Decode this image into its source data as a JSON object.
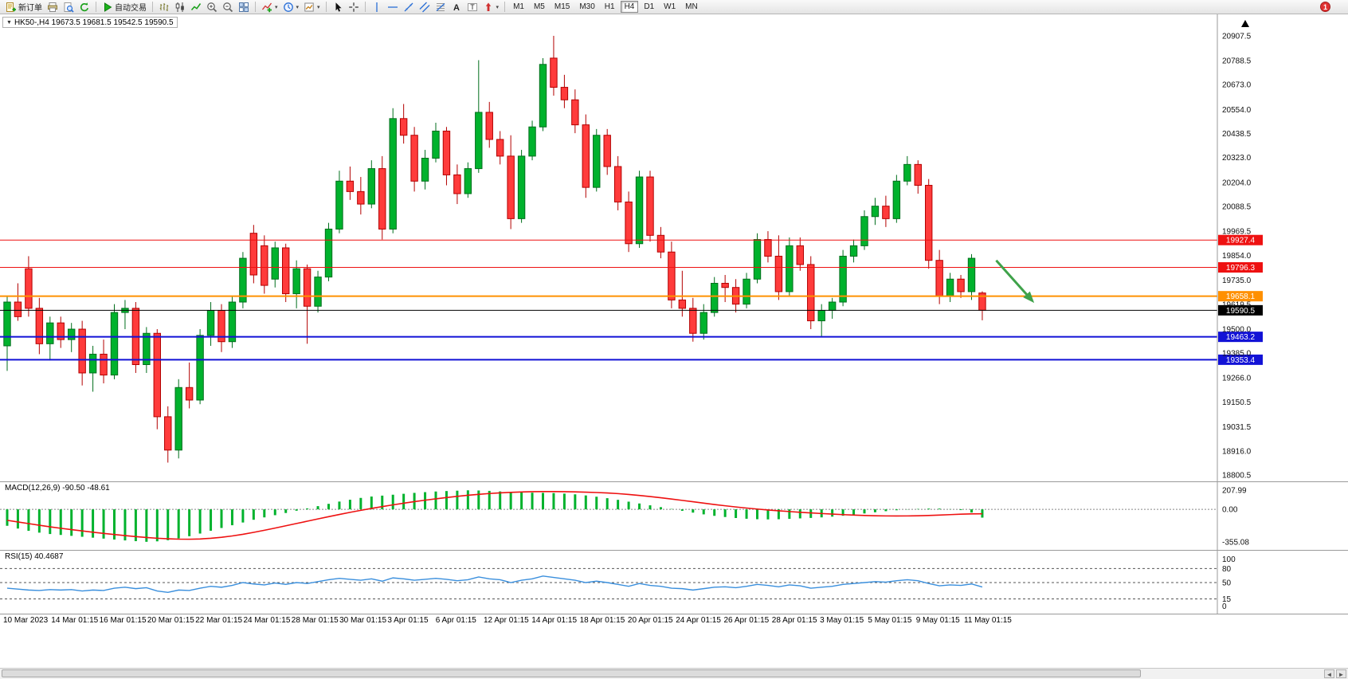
{
  "toolbar": {
    "groups": [
      {
        "items": [
          {
            "name": "new-order-button",
            "icon": "new-order-icon",
            "label": "新订单"
          },
          {
            "name": "print-button",
            "icon": "print-icon"
          },
          {
            "name": "print-preview-button",
            "icon": "preview-icon"
          },
          {
            "name": "refresh-button",
            "icon": "refresh-icon"
          }
        ]
      },
      {
        "items": [
          {
            "name": "autotrade-button",
            "icon": "autotrade-icon",
            "label": "自动交易"
          }
        ]
      },
      {
        "items": [
          {
            "name": "bar-chart-button",
            "icon": "bar-chart-icon"
          },
          {
            "name": "candle-chart-button",
            "icon": "candle-chart-icon"
          },
          {
            "name": "line-chart-button",
            "icon": "line-chart-icon"
          },
          {
            "name": "zoom-in-button",
            "icon": "zoom-in-icon"
          },
          {
            "name": "zoom-out-button",
            "icon": "zoom-out-icon"
          },
          {
            "name": "tile-windows-button",
            "icon": "tile-windows-icon"
          }
        ]
      },
      {
        "items": [
          {
            "name": "indicators-button",
            "icon": "indicators-icon",
            "caret": true
          },
          {
            "name": "periods-button",
            "icon": "periods-icon",
            "caret": true
          },
          {
            "name": "templates-button",
            "icon": "templates-icon",
            "caret": true
          }
        ]
      },
      {
        "items": [
          {
            "name": "cursor-button",
            "icon": "cursor-icon"
          },
          {
            "name": "crosshair-button",
            "icon": "crosshair-icon"
          }
        ]
      },
      {
        "items": [
          {
            "name": "vertical-line-button",
            "icon": "vline-icon"
          },
          {
            "name": "horizontal-line-button",
            "icon": "hline-icon"
          },
          {
            "name": "trendline-button",
            "icon": "trendline-icon"
          },
          {
            "name": "channel-button",
            "icon": "channel-icon"
          },
          {
            "name": "fibonacci-button",
            "icon": "fibo-icon"
          },
          {
            "name": "text-button",
            "icon": "text-icon"
          },
          {
            "name": "text-label-button",
            "icon": "label-icon"
          },
          {
            "name": "arrows-button",
            "icon": "arrows-tool-icon",
            "caret": true
          }
        ]
      }
    ],
    "timeframes": [
      "M1",
      "M5",
      "M15",
      "M30",
      "H1",
      "H4",
      "D1",
      "W1",
      "MN"
    ],
    "active_timeframe": "H4",
    "notification_badge": "1"
  },
  "colors": {
    "bull": "#00b22d",
    "bull_border": "#006e1c",
    "bear": "#ff3b3b",
    "bear_border": "#b30000",
    "macd_hist": "#00b22d",
    "macd_signal": "#ee1111",
    "rsi_line": "#3a8fdd",
    "arrow": "#3fa24a",
    "level_red": "#ee1111",
    "level_orange": "#ff9000",
    "level_black": "#000000",
    "level_blue": "#1212d6"
  },
  "chart_data": {
    "type": "candlestick",
    "symbol": "HK50-",
    "timeframe": "H4",
    "symbol_display": "HK50-,H4 19673.5 19681.5 19542.5 19590.5",
    "current_ohlc": {
      "open": 19673.5,
      "high": 19681.5,
      "low": 19542.5,
      "close": 19590.5
    },
    "price_axis": {
      "view_max": 21010,
      "view_min": 18770,
      "ticks": [
        "20907.5",
        "20788.5",
        "20673.0",
        "20554.0",
        "20438.5",
        "20323.0",
        "20204.0",
        "20088.5",
        "19969.5",
        "19854.0",
        "19735.0",
        "19619.5",
        "19500.0",
        "19385.0",
        "19266.0",
        "19150.5",
        "19031.5",
        "18916.0",
        "18800.5"
      ]
    },
    "x_labels": [
      "10 Mar 2023",
      "14 Mar 01:15",
      "16 Mar 01:15",
      "20 Mar 01:15",
      "22 Mar 01:15",
      "24 Mar 01:15",
      "28 Mar 01:15",
      "30 Mar 01:15",
      "3 Apr 01:15",
      "6 Apr 01:15",
      "12 Apr 01:15",
      "14 Apr 01:15",
      "18 Apr 01:15",
      "20 Apr 01:15",
      "24 Apr 01:15",
      "26 Apr 01:15",
      "28 Apr 01:15",
      "3 May 01:15",
      "5 May 01:15",
      "9 May 01:15",
      "11 May 01:15"
    ],
    "levels": [
      {
        "price": 19927.4,
        "label": "19927.4",
        "color": "#ee1111",
        "width": 1
      },
      {
        "price": 19796.3,
        "label": "19796.3",
        "color": "#ee1111",
        "width": 1
      },
      {
        "price": 19658.1,
        "label": "19658.1",
        "color": "#ff9000",
        "width": 2
      },
      {
        "price": 19590.5,
        "label": "19590.5",
        "color": "#000000",
        "width": 1
      },
      {
        "price": 19463.2,
        "label": "19463.2",
        "color": "#1212d6",
        "width": 2
      },
      {
        "price": 19353.4,
        "label": "19353.4",
        "color": "#1212d6",
        "width": 2
      }
    ],
    "arrow_annotation": {
      "from": {
        "index": 92.3,
        "price": 19830
      },
      "to": {
        "index": 95.6,
        "price": 19640
      }
    },
    "candles": [
      [
        19420,
        19660,
        19300,
        19630
      ],
      [
        19630,
        19720,
        19540,
        19560
      ],
      [
        19790,
        19850,
        19560,
        19600
      ],
      [
        19600,
        19650,
        19380,
        19430
      ],
      [
        19430,
        19560,
        19350,
        19530
      ],
      [
        19530,
        19560,
        19410,
        19450
      ],
      [
        19450,
        19530,
        19390,
        19500
      ],
      [
        19500,
        19540,
        19230,
        19290
      ],
      [
        19290,
        19420,
        19200,
        19380
      ],
      [
        19380,
        19450,
        19240,
        19280
      ],
      [
        19280,
        19620,
        19260,
        19580
      ],
      [
        19580,
        19640,
        19500,
        19600
      ],
      [
        19600,
        19630,
        19290,
        19330
      ],
      [
        19330,
        19510,
        19290,
        19480
      ],
      [
        19480,
        19500,
        19020,
        19080
      ],
      [
        19080,
        19130,
        18860,
        18920
      ],
      [
        18920,
        19260,
        18880,
        19220
      ],
      [
        19220,
        19340,
        19120,
        19160
      ],
      [
        19160,
        19500,
        19140,
        19470
      ],
      [
        19470,
        19630,
        19420,
        19590
      ],
      [
        19590,
        19620,
        19390,
        19440
      ],
      [
        19440,
        19660,
        19410,
        19630
      ],
      [
        19630,
        19870,
        19600,
        19840
      ],
      [
        19960,
        20000,
        19720,
        19760
      ],
      [
        19900,
        19950,
        19670,
        19710
      ],
      [
        19740,
        19920,
        19700,
        19890
      ],
      [
        19890,
        19910,
        19630,
        19670
      ],
      [
        19670,
        19830,
        19600,
        19790
      ],
      [
        19790,
        19810,
        19430,
        19610
      ],
      [
        19610,
        19780,
        19580,
        19750
      ],
      [
        19750,
        20010,
        19730,
        19980
      ],
      [
        19980,
        20260,
        19960,
        20210
      ],
      [
        20210,
        20280,
        20120,
        20160
      ],
      [
        20160,
        20230,
        20050,
        20100
      ],
      [
        20100,
        20310,
        20080,
        20270
      ],
      [
        20270,
        20330,
        19930,
        19980
      ],
      [
        19980,
        20560,
        19960,
        20510
      ],
      [
        20510,
        20580,
        20390,
        20430
      ],
      [
        20430,
        20470,
        20160,
        20210
      ],
      [
        20210,
        20360,
        20170,
        20320
      ],
      [
        20320,
        20490,
        20300,
        20450
      ],
      [
        20450,
        20470,
        20190,
        20240
      ],
      [
        20240,
        20290,
        20100,
        20150
      ],
      [
        20150,
        20300,
        20130,
        20270
      ],
      [
        20270,
        20790,
        20250,
        20540
      ],
      [
        20540,
        20590,
        20370,
        20410
      ],
      [
        20410,
        20450,
        20290,
        20330
      ],
      [
        20330,
        20430,
        19980,
        20030
      ],
      [
        20030,
        20360,
        20010,
        20330
      ],
      [
        20330,
        20500,
        20310,
        20470
      ],
      [
        20470,
        20800,
        20450,
        20770
      ],
      [
        20800,
        20907,
        20620,
        20660
      ],
      [
        20660,
        20720,
        20560,
        20600
      ],
      [
        20600,
        20650,
        20440,
        20480
      ],
      [
        20480,
        20530,
        20130,
        20180
      ],
      [
        20180,
        20460,
        20160,
        20430
      ],
      [
        20430,
        20460,
        20240,
        20280
      ],
      [
        20280,
        20330,
        20070,
        20110
      ],
      [
        20110,
        20160,
        19870,
        19910
      ],
      [
        19910,
        20260,
        19890,
        20230
      ],
      [
        20230,
        20260,
        19920,
        19950
      ],
      [
        19950,
        19990,
        19840,
        19870
      ],
      [
        19870,
        19920,
        19600,
        19640
      ],
      [
        19640,
        19780,
        19560,
        19600
      ],
      [
        19600,
        19650,
        19440,
        19480
      ],
      [
        19480,
        19620,
        19450,
        19580
      ],
      [
        19580,
        19750,
        19560,
        19720
      ],
      [
        19720,
        19760,
        19630,
        19700
      ],
      [
        19700,
        19740,
        19580,
        19620
      ],
      [
        19620,
        19770,
        19600,
        19740
      ],
      [
        19740,
        19960,
        19720,
        19930
      ],
      [
        19930,
        19970,
        19820,
        19850
      ],
      [
        19850,
        19950,
        19640,
        19680
      ],
      [
        19680,
        19940,
        19660,
        19900
      ],
      [
        19900,
        19940,
        19780,
        19810
      ],
      [
        19810,
        19850,
        19500,
        19540
      ],
      [
        19540,
        19620,
        19460,
        19590
      ],
      [
        19590,
        19650,
        19550,
        19630
      ],
      [
        19630,
        19880,
        19610,
        19850
      ],
      [
        19850,
        19930,
        19820,
        19900
      ],
      [
        19900,
        20070,
        19880,
        20040
      ],
      [
        20040,
        20130,
        20000,
        20090
      ],
      [
        20090,
        20140,
        19990,
        20030
      ],
      [
        20030,
        20240,
        20010,
        20210
      ],
      [
        20210,
        20330,
        20190,
        20290
      ],
      [
        20290,
        20310,
        20150,
        20190
      ],
      [
        20190,
        20220,
        19790,
        19830
      ],
      [
        19830,
        19880,
        19620,
        19660
      ],
      [
        19660,
        19770,
        19630,
        19740
      ],
      [
        19740,
        19760,
        19650,
        19680
      ],
      [
        19680,
        19860,
        19640,
        19840
      ],
      [
        19673.5,
        19681.5,
        19542.5,
        19590.5
      ]
    ],
    "macd": {
      "display": "MACD(12,26,9) -90.50 -48.61",
      "params": "12,26,9",
      "main": -90.5,
      "signal_value": -48.61,
      "scale_labels": [
        "207.99",
        "0.00",
        "-355.08"
      ],
      "hist": [
        -180,
        -210,
        -235,
        -255,
        -270,
        -280,
        -290,
        -300,
        -310,
        -320,
        -330,
        -340,
        -348,
        -355.08,
        -350,
        -338,
        -318,
        -294,
        -265,
        -234,
        -204,
        -174,
        -144,
        -114,
        -88,
        -64,
        -40,
        -15,
        10,
        35,
        60,
        85,
        105,
        125,
        140,
        150,
        160,
        170,
        180,
        188,
        195,
        200,
        204,
        207.99,
        206,
        202,
        196,
        190,
        185,
        182,
        180,
        178,
        172,
        164,
        152,
        138,
        122,
        104,
        84,
        64,
        44,
        24,
        4,
        -16,
        -36,
        -55,
        -71,
        -84,
        -95,
        -103,
        -108,
        -110,
        -108,
        -104,
        -99,
        -94,
        -88,
        -80,
        -70,
        -58,
        -45,
        -32,
        -20,
        -10,
        -2,
        4,
        8,
        8,
        2,
        -8,
        -35,
        -90.5
      ],
      "signal": [
        -120,
        -138,
        -156,
        -174,
        -191,
        -207,
        -222,
        -236,
        -250,
        -263,
        -275,
        -287,
        -298,
        -308,
        -316,
        -322,
        -326,
        -327,
        -324,
        -317,
        -306,
        -291,
        -273,
        -252,
        -229,
        -205,
        -180,
        -155,
        -130,
        -105,
        -80,
        -56,
        -33,
        -11,
        10,
        30,
        49,
        67,
        84,
        100,
        115,
        129,
        142,
        154,
        164,
        173,
        180,
        186,
        190,
        193,
        194,
        194,
        193,
        191,
        188,
        184,
        179,
        172,
        163,
        152,
        140,
        127,
        113,
        98,
        83,
        68,
        53,
        39,
        26,
        14,
        3,
        -7,
        -16,
        -24,
        -32,
        -39,
        -46,
        -52,
        -58,
        -63,
        -67,
        -70,
        -72,
        -73,
        -72,
        -70,
        -67,
        -63,
        -58,
        -53,
        -50,
        -48.61
      ]
    },
    "rsi": {
      "display": "RSI(15) 40.4687",
      "period": 15,
      "value": 40.4687,
      "scale_labels": [
        "100",
        "80",
        "50",
        "15",
        "0"
      ],
      "level_lines": [
        80,
        50,
        15
      ],
      "values": [
        38,
        36,
        34,
        33,
        35,
        34,
        35,
        32,
        34,
        33,
        38,
        40,
        37,
        39,
        32,
        29,
        34,
        33,
        38,
        42,
        40,
        44,
        50,
        47,
        45,
        49,
        46,
        50,
        48,
        52,
        56,
        59,
        57,
        55,
        58,
        53,
        60,
        58,
        55,
        57,
        59,
        57,
        54,
        56,
        62,
        58,
        56,
        50,
        55,
        58,
        64,
        61,
        58,
        55,
        50,
        53,
        50,
        46,
        42,
        48,
        44,
        42,
        38,
        37,
        34,
        37,
        40,
        41,
        39,
        42,
        46,
        44,
        41,
        45,
        43,
        38,
        40,
        42,
        46,
        48,
        50,
        52,
        51,
        54,
        56,
        54,
        48,
        43,
        45,
        44,
        47,
        40.47
      ]
    }
  }
}
